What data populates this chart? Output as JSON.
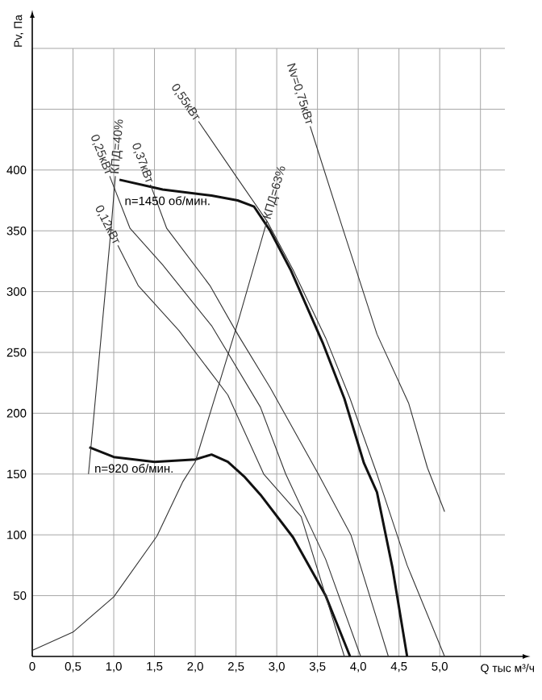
{
  "chart_data": {
    "type": "line",
    "xlabel": "Q тыс м³/ч",
    "ylabel": "Pv, Па",
    "xlim": [
      0,
      5.8
    ],
    "ylim": [
      0,
      500
    ],
    "xticks": [
      0,
      {
        "value": 0.5,
        "label": "0,5"
      },
      {
        "value": 1.0,
        "label": "1,0"
      },
      {
        "value": 1.5,
        "label": "1,5"
      },
      {
        "value": 2.0,
        "label": "2,0"
      },
      {
        "value": 2.5,
        "label": "2,5"
      },
      {
        "value": 3.0,
        "label": "3,0"
      },
      {
        "value": 3.5,
        "label": "3,5"
      },
      {
        "value": 4.0,
        "label": "4,0"
      },
      {
        "value": 4.5,
        "label": "4,5"
      },
      {
        "value": 5.0,
        "label": "5,0"
      },
      {
        "value": 5.5,
        "label": null
      }
    ],
    "yticks": [
      50,
      100,
      150,
      200,
      250,
      300,
      350,
      400,
      {
        "value": 450,
        "label": null
      },
      {
        "value": 500,
        "label": null
      }
    ],
    "grid": true,
    "marker": "none",
    "series": [
      {
        "color": "#111111",
        "x": [
          1.07,
          1.6,
          2.2,
          2.52,
          2.72,
          2.92,
          3.17,
          3.57,
          3.83,
          4.07,
          4.23,
          4.42,
          4.6
        ],
        "values": [
          392,
          384,
          379,
          375,
          370,
          350,
          318,
          257,
          212,
          159,
          135,
          73,
          0
        ]
      },
      {
        "color": "#111111",
        "x": [
          0.7,
          1.0,
          1.5,
          2.0,
          2.2,
          2.4,
          2.6,
          2.8,
          3.2,
          3.6,
          3.9
        ],
        "values": [
          172,
          164,
          160,
          162,
          166,
          160,
          148,
          133,
          98,
          50,
          0
        ]
      },
      {
        "name": "0,12кВт",
        "color": "#333333",
        "x": [
          1.05,
          1.3,
          1.8,
          2.4,
          2.84,
          3.3,
          3.83
        ],
        "values": [
          338,
          305,
          268,
          215,
          150,
          115,
          0
        ]
      },
      {
        "name": "0,25кВт",
        "color": "#333333",
        "x": [
          0.95,
          1.2,
          1.6,
          2.2,
          2.8,
          3.11,
          3.6,
          4.03
        ],
        "values": [
          395,
          352,
          322,
          272,
          205,
          150,
          80,
          0
        ]
      },
      {
        "name": "0,37кВт",
        "color": "#333333",
        "x": [
          1.45,
          1.65,
          2.18,
          2.52,
          2.92,
          3.51,
          3.91,
          4.37
        ],
        "values": [
          388,
          352,
          305,
          265,
          221,
          150,
          100,
          0
        ]
      },
      {
        "name": "0,55кВт",
        "color": "#333333",
        "x": [
          2.04,
          2.52,
          2.88,
          3.2,
          3.6,
          3.9,
          4.23,
          4.6,
          5.06
        ],
        "values": [
          440,
          393,
          358,
          318,
          262,
          212,
          150,
          75,
          0
        ]
      },
      {
        "name": "Nv=0,75кВт",
        "color": "#333333",
        "x": [
          3.41,
          3.8,
          4.23,
          4.62,
          4.85,
          5.06
        ],
        "values": [
          436,
          354,
          265,
          208,
          155,
          119
        ]
      },
      {
        "name": "КПД=40%",
        "color": "#333333",
        "x": [
          0.69,
          0.97,
          1.02
        ],
        "values": [
          150,
          354,
          395
        ]
      },
      {
        "name": "КПД=63%",
        "color": "#333333",
        "x": [
          0,
          0.5,
          1.0,
          1.53,
          1.85,
          2.0,
          2.52,
          2.88
        ],
        "values": [
          5,
          20,
          49,
          99,
          144,
          160,
          274,
          358
        ]
      }
    ],
    "annotations": [
      "n=1450 об/мин.",
      "n=920 об/мин."
    ]
  }
}
